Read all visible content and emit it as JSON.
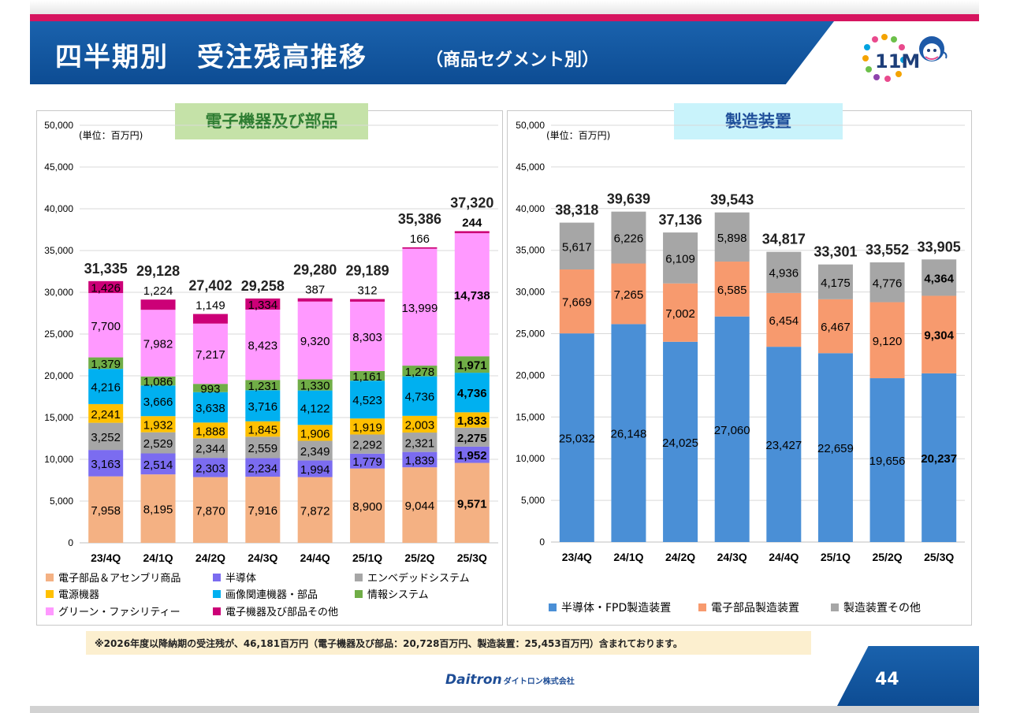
{
  "header": {
    "title": "四半期別　受注残高推移",
    "subtitle": "（商品セグメント別）",
    "logo_text": "11M"
  },
  "colors": {
    "brand_blue": "#0d4c93",
    "accent_pink": "#d6145f"
  },
  "chart_data": [
    {
      "type": "bar",
      "stacked": true,
      "title": "電子機器及び部品",
      "unit_label": "(単位：百万円)",
      "categories": [
        "23/4Q",
        "24/1Q",
        "24/2Q",
        "24/3Q",
        "24/4Q",
        "25/1Q",
        "25/2Q",
        "25/3Q"
      ],
      "ylim": [
        0,
        50000
      ],
      "yticks": [
        0,
        5000,
        10000,
        15000,
        20000,
        25000,
        30000,
        35000,
        40000,
        45000,
        50000
      ],
      "ytick_labels": [
        "0",
        "5,000",
        "10,000",
        "15,000",
        "20,000",
        "25,000",
        "30,000",
        "35,000",
        "40,000",
        "45,000",
        "50,000"
      ],
      "grid": true,
      "series": [
        {
          "name": "電子部品＆アセンブリ商品",
          "color": "#f4b183",
          "values": [
            7958,
            8195,
            7870,
            7916,
            7872,
            8900,
            9044,
            9571
          ],
          "labels": [
            "7,958",
            "8,195",
            "7,870",
            "7,916",
            "7,872",
            "8,900",
            "9,044",
            "9,571"
          ]
        },
        {
          "name": "半導体",
          "color": "#7b6cf0",
          "values": [
            3163,
            2514,
            2303,
            2234,
            1994,
            1779,
            1839,
            1952
          ],
          "labels": [
            "3,163",
            "2,514",
            "2,303",
            "2,234",
            "1,994",
            "1,779",
            "1,839",
            "1,952"
          ]
        },
        {
          "name": "エンベデッドシステム",
          "color": "#a6a6a6",
          "values": [
            3252,
            2529,
            2344,
            2559,
            2349,
            2292,
            2321,
            2275
          ],
          "labels": [
            "3,252",
            "2,529",
            "2,344",
            "2,559",
            "2,349",
            "2,292",
            "2,321",
            "2,275"
          ]
        },
        {
          "name": "電源機器",
          "color": "#ffc000",
          "values": [
            2241,
            1932,
            1888,
            1845,
            1906,
            1919,
            2003,
            1833
          ],
          "labels": [
            "2,241",
            "1,932",
            "1,888",
            "1,845",
            "1,906",
            "1,919",
            "2,003",
            "1,833"
          ]
        },
        {
          "name": "画像関連機器・部品",
          "color": "#00b0f0",
          "values": [
            4216,
            3666,
            3638,
            3716,
            4122,
            4523,
            4736,
            4736
          ],
          "labels": [
            "4,216",
            "3,666",
            "3,638",
            "3,716",
            "4,122",
            "4,523",
            "4,736",
            "4,736"
          ]
        },
        {
          "name": "情報システム",
          "color": "#70ad47",
          "values": [
            1379,
            1086,
            993,
            1231,
            1330,
            1161,
            1278,
            1971
          ],
          "labels": [
            "1,379",
            "1,086",
            "993",
            "1,231",
            "1,330",
            "1,161",
            "1,278",
            "1,971"
          ]
        },
        {
          "name": "グリーン・ファシリティー",
          "color": "#ff99ff",
          "values": [
            7700,
            7982,
            7217,
            8423,
            9320,
            8303,
            13999,
            14738
          ],
          "labels": [
            "7,700",
            "7,982",
            "7,217",
            "8,423",
            "9,320",
            "8,303",
            "13,999",
            "14,738"
          ]
        },
        {
          "name": "電子機器及び部品その他",
          "color": "#cc0077",
          "values": [
            1426,
            1224,
            1149,
            1334,
            387,
            312,
            166,
            244
          ],
          "labels": [
            "1,426",
            "1,224",
            "1,149",
            "1,334",
            "387",
            "312",
            "166",
            "244"
          ]
        }
      ],
      "totals": [
        31335,
        29128,
        27402,
        29258,
        29280,
        29189,
        35386,
        37320
      ],
      "total_labels": [
        "31,335",
        "29,128",
        "27,402",
        "29,258",
        "29,280",
        "29,189",
        "35,386",
        "37,320"
      ]
    },
    {
      "type": "bar",
      "stacked": true,
      "title": "製造装置",
      "unit_label": "(単位：百万円)",
      "categories": [
        "23/4Q",
        "24/1Q",
        "24/2Q",
        "24/3Q",
        "24/4Q",
        "25/1Q",
        "25/2Q",
        "25/3Q"
      ],
      "ylim": [
        0,
        50000
      ],
      "yticks": [
        0,
        5000,
        10000,
        15000,
        20000,
        25000,
        30000,
        35000,
        40000,
        45000,
        50000
      ],
      "ytick_labels": [
        "0",
        "5,000",
        "10,000",
        "15,000",
        "20,000",
        "25,000",
        "30,000",
        "35,000",
        "40,000",
        "45,000",
        "50,000"
      ],
      "grid": true,
      "series": [
        {
          "name": "半導体・FPD製造装置",
          "color": "#4a8fd6",
          "values": [
            25032,
            26148,
            24025,
            27060,
            23427,
            22659,
            19656,
            20237
          ],
          "labels": [
            "25,032",
            "26,148",
            "24,025",
            "27,060",
            "23,427",
            "22,659",
            "19,656",
            "20,237"
          ]
        },
        {
          "name": "電子部品製造装置",
          "color": "#f79a6e",
          "values": [
            7669,
            7265,
            7002,
            6585,
            6454,
            6467,
            9120,
            9304
          ],
          "labels": [
            "7,669",
            "7,265",
            "7,002",
            "6,585",
            "6,454",
            "6,467",
            "9,120",
            "9,304"
          ]
        },
        {
          "name": "製造装置その他",
          "color": "#a6a6a6",
          "values": [
            5617,
            6226,
            6109,
            5898,
            4936,
            4175,
            4776,
            4364
          ],
          "labels": [
            "5,617",
            "6,226",
            "6,109",
            "5,898",
            "4,936",
            "4,175",
            "4,776",
            "4,364"
          ]
        }
      ],
      "totals": [
        38318,
        39639,
        37136,
        39543,
        34817,
        33301,
        33552,
        33905
      ],
      "total_labels": [
        "38,318",
        "39,639",
        "37,136",
        "39,543",
        "34,817",
        "33,301",
        "33,552",
        "33,905"
      ]
    }
  ],
  "footnote": "※2026年度以降納期の受注残が、46,181百万円（電子機器及び部品：20,728百万円、製造装置：25,453百万円）含まれております。",
  "footer": {
    "company": "Daitron",
    "company_sub": "ダイトロン株式会社",
    "page_number": "44"
  }
}
